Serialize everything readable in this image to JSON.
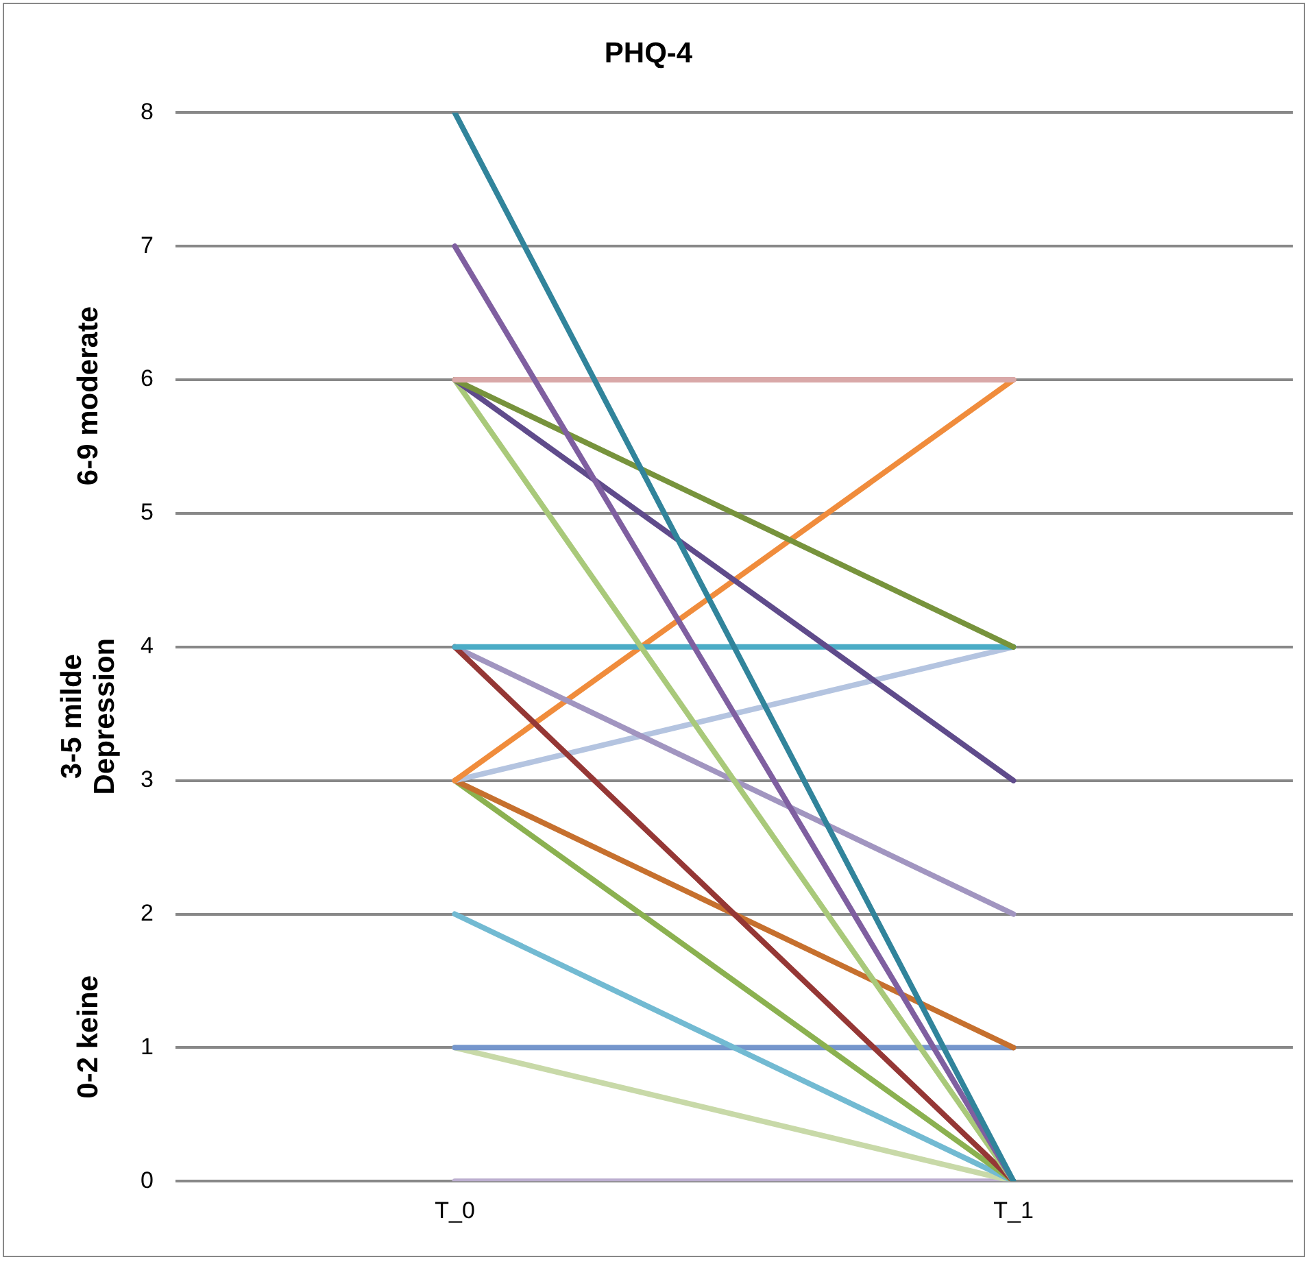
{
  "chart_data": {
    "type": "line",
    "title": "PHQ-4",
    "categories": [
      "T_0",
      "T_1"
    ],
    "ylim": [
      0,
      8
    ],
    "yticks": [
      0,
      1,
      2,
      3,
      4,
      5,
      6,
      7,
      8
    ],
    "grid": "y",
    "legend": false,
    "marker": "none",
    "line_style": "solid",
    "annotations": [
      "0-2 keine",
      "3-5 milde Depression",
      "6-9 moderate"
    ],
    "series": [
      {
        "color": "#31849b",
        "values": [
          8,
          0
        ]
      },
      {
        "color": "#7f5fa0",
        "values": [
          7,
          0
        ]
      },
      {
        "color": "#d9a8a8",
        "values": [
          6,
          6
        ]
      },
      {
        "color": "#77933c",
        "values": [
          6,
          4
        ]
      },
      {
        "color": "#5f4b8b",
        "values": [
          6,
          3
        ]
      },
      {
        "color": "#a9c97a",
        "values": [
          6,
          0
        ]
      },
      {
        "color": "#4bacc6",
        "values": [
          4,
          4
        ]
      },
      {
        "color": "#953735",
        "values": [
          4,
          0
        ]
      },
      {
        "color": "#a195c0",
        "values": [
          4,
          2
        ]
      },
      {
        "color": "#f08c3c",
        "values": [
          3,
          6
        ]
      },
      {
        "color": "#b4c4e0",
        "values": [
          3,
          4
        ]
      },
      {
        "color": "#c6702e",
        "values": [
          3,
          1
        ]
      },
      {
        "color": "#8bb150",
        "values": [
          3,
          0
        ]
      },
      {
        "color": "#72bad2",
        "values": [
          2,
          0
        ]
      },
      {
        "color": "#7596cc",
        "values": [
          1,
          1
        ]
      },
      {
        "color": "#c8d9a8",
        "values": [
          1,
          0
        ]
      },
      {
        "color": "#bcaed0",
        "values": [
          0,
          0
        ]
      }
    ]
  }
}
